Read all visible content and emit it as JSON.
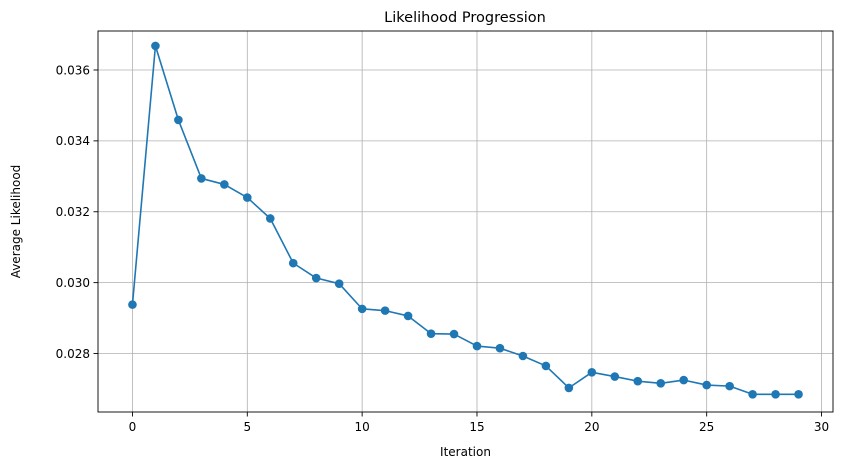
{
  "chart_data": {
    "type": "line",
    "title": "Likelihood Progression",
    "xlabel": "Iteration",
    "ylabel": "Average Likelihood",
    "xlim": [
      -1.5,
      30.5
    ],
    "ylim": [
      0.02635,
      0.0371
    ],
    "xticks": [
      0,
      5,
      10,
      15,
      20,
      25,
      30
    ],
    "xtick_labels": [
      "0",
      "5",
      "10",
      "15",
      "20",
      "25",
      "30"
    ],
    "yticks": [
      0.028,
      0.03,
      0.032,
      0.034,
      0.036
    ],
    "ytick_labels": [
      "0.028",
      "0.030",
      "0.032",
      "0.034",
      "0.036"
    ],
    "grid": true,
    "legend": false,
    "color": "#1f77b4",
    "marker": "circle",
    "x": [
      0,
      1,
      2,
      3,
      4,
      5,
      6,
      7,
      8,
      9,
      10,
      11,
      12,
      13,
      14,
      15,
      16,
      17,
      18,
      19,
      20,
      21,
      22,
      23,
      24,
      25,
      26,
      27,
      28,
      29
    ],
    "y": [
      0.02938,
      0.03668,
      0.03459,
      0.03294,
      0.03277,
      0.0324,
      0.03181,
      0.03055,
      0.03013,
      0.02997,
      0.02926,
      0.02921,
      0.02906,
      0.02856,
      0.02855,
      0.02821,
      0.02815,
      0.02793,
      0.02765,
      0.02703,
      0.02747,
      0.02735,
      0.02722,
      0.02716,
      0.02725,
      0.02711,
      0.02708,
      0.02685,
      0.02685,
      0.02685
    ]
  }
}
